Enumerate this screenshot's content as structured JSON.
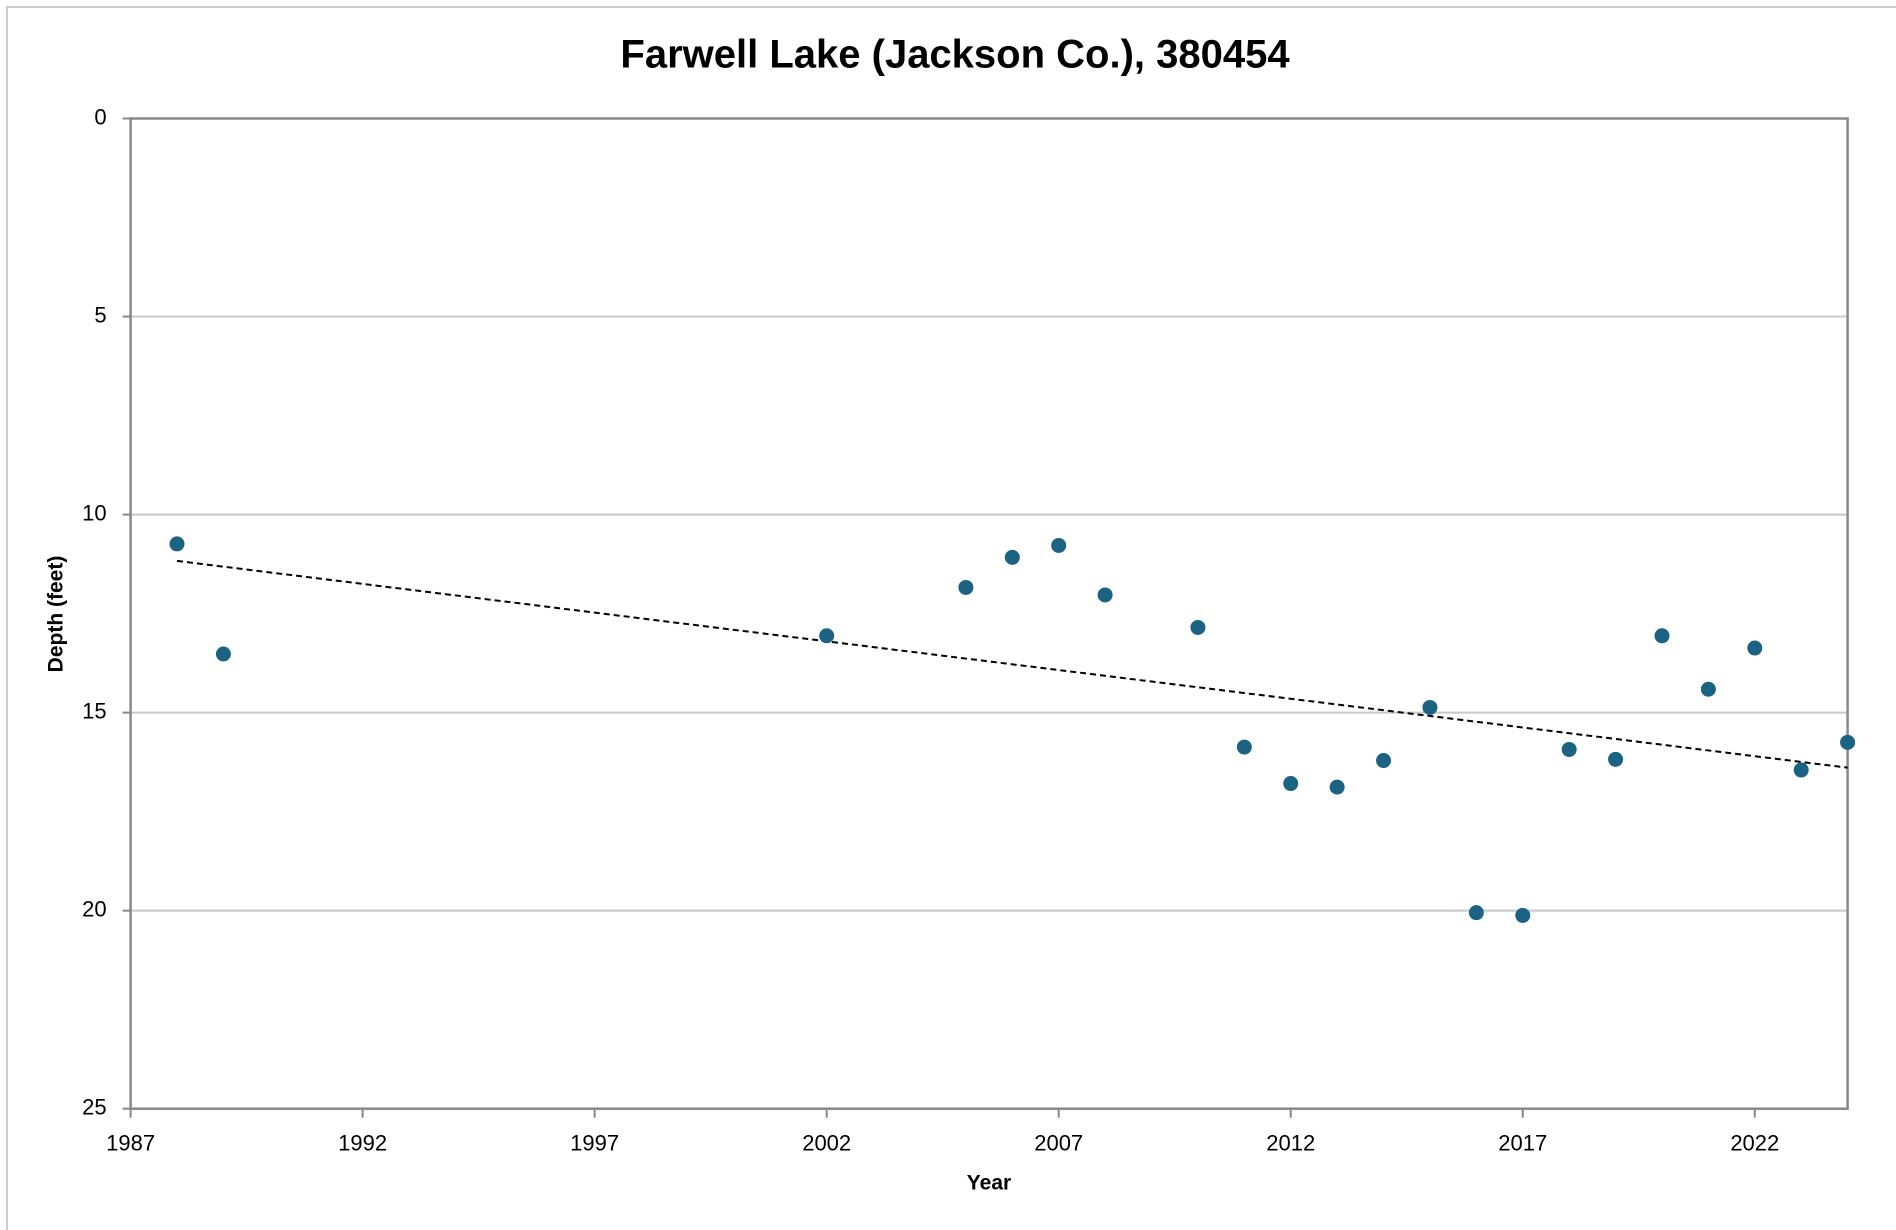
{
  "chart_data": {
    "type": "scatter",
    "title": "Farwell Lake (Jackson Co.), 380454",
    "x_label": "Year",
    "y_label": "Depth (feet)",
    "x": [
      1988,
      1989,
      2002,
      2005,
      2006,
      2007,
      2008,
      2010,
      2011,
      2012,
      2013,
      2014,
      2015,
      2016,
      2017,
      2018,
      2019,
      2020,
      2021,
      2022,
      2023,
      2024
    ],
    "values": [
      10.74,
      13.52,
      13.06,
      11.84,
      11.08,
      10.78,
      12.03,
      12.85,
      15.87,
      16.79,
      16.88,
      16.21,
      14.87,
      20.05,
      20.12,
      15.93,
      16.18,
      13.06,
      14.41,
      13.37,
      16.45,
      15.75
    ],
    "color": "#1b6283",
    "trendline": {
      "x": [
        1988,
        2024
      ],
      "values": [
        11.17,
        16.39
      ],
      "color": "#000000"
    },
    "xlim": [
      1987,
      2024
    ],
    "xticks": [
      1987,
      1992,
      1997,
      2002,
      2007,
      2012,
      2017,
      2022
    ],
    "ylim": [
      0,
      25
    ],
    "yticks": [
      0,
      5,
      10,
      15,
      20,
      25
    ],
    "y_reversed": true,
    "grid": true
  }
}
